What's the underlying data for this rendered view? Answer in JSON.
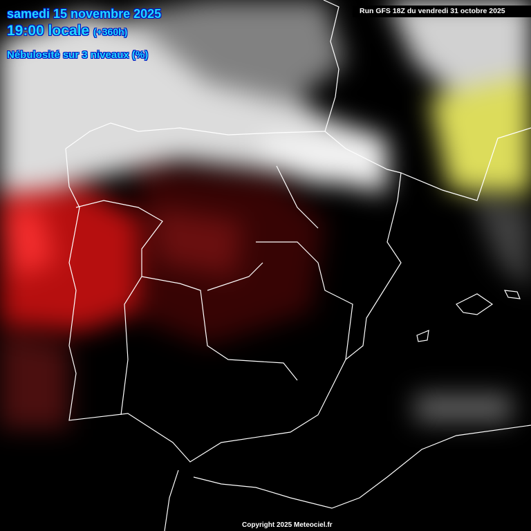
{
  "header": {
    "date": "samedi 15 novembre 2025",
    "time": "19:00 locale",
    "lead": "(+360h)",
    "parameter": "Nébulosité sur 3 niveaux (%)"
  },
  "run_info": "Run GFS 18Z du vendredi 31 octobre 2025",
  "copyright": "Copyright 2025 Meteociel.fr",
  "colors": {
    "low_cloud": "#ff2020",
    "mid_cloud": "#ffffff",
    "high_cloud": "#ffff40",
    "text": "#22d8ff",
    "coastline": "#ffffff"
  }
}
